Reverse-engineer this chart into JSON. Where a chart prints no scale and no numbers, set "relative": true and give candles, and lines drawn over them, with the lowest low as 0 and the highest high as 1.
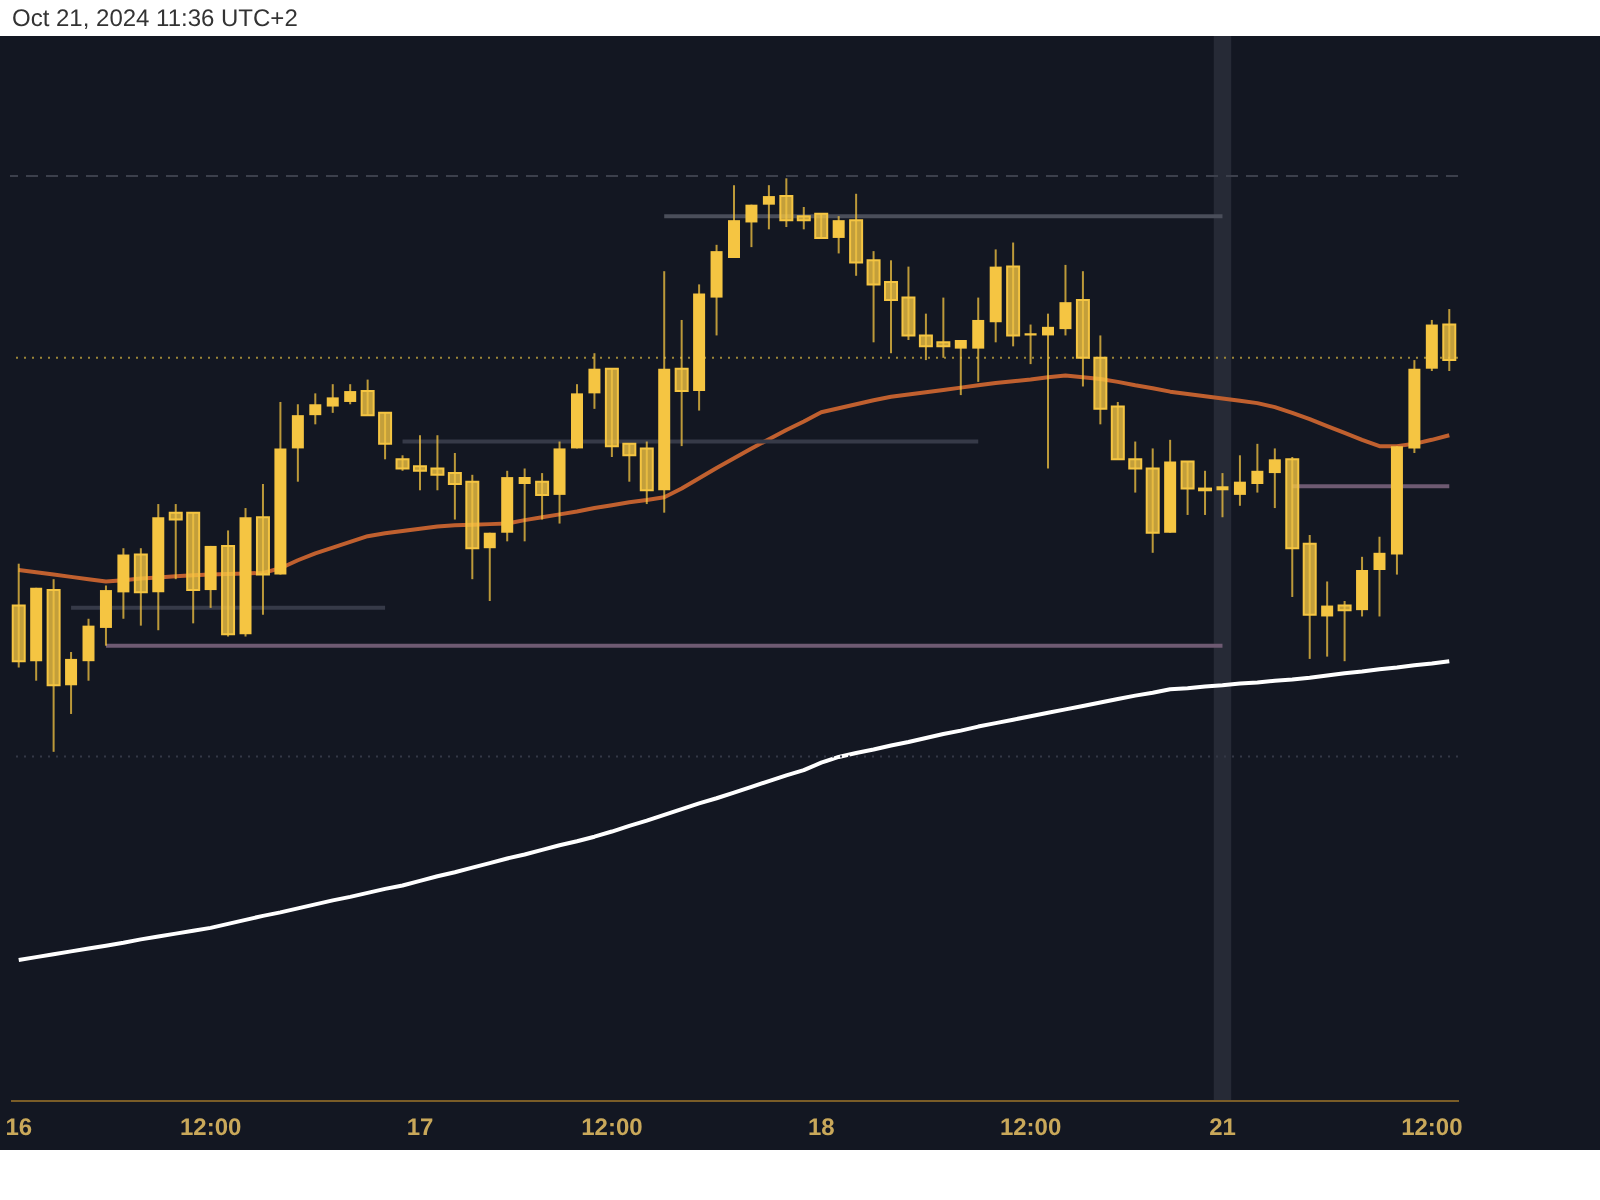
{
  "chart_data": {
    "type": "candlestick",
    "relative": true,
    "color": "#f5c542",
    "annotations": [
      "Oct 21, 2024 11:36 UTC+2"
    ],
    "categories": [
      "16",
      null,
      null,
      null,
      null,
      null,
      null,
      null,
      null,
      null,
      null,
      "12:00",
      null,
      null,
      null,
      null,
      null,
      null,
      null,
      null,
      null,
      null,
      null,
      "17",
      null,
      null,
      null,
      null,
      null,
      null,
      null,
      null,
      null,
      null,
      "12:00",
      null,
      null,
      null,
      null,
      null,
      null,
      null,
      null,
      null,
      null,
      null,
      "18",
      null,
      null,
      null,
      null,
      null,
      null,
      null,
      null,
      null,
      null,
      null,
      "12:00",
      null,
      null,
      null,
      null,
      null,
      null,
      null,
      null,
      null,
      null,
      "21",
      null,
      null,
      null,
      null,
      null,
      null,
      null,
      null,
      null,
      null,
      null,
      "12:00",
      null
    ],
    "ohlc": [
      [
        0.255,
        0.328,
        0.147,
        0.158
      ],
      [
        0.158,
        0.286,
        0.124,
        0.286
      ],
      [
        0.282,
        0.301,
        0,
        0.116
      ],
      [
        0.116,
        0.174,
        0.066,
        0.162
      ],
      [
        0.158,
        0.232,
        0.124,
        0.22
      ],
      [
        0.216,
        0.29,
        0.185,
        0.282
      ],
      [
        0.278,
        0.355,
        0.232,
        0.344
      ],
      [
        0.344,
        0.355,
        0.22,
        0.278
      ],
      [
        0.278,
        0.432,
        0.212,
        0.409
      ],
      [
        0.417,
        0.432,
        0.301,
        0.405
      ],
      [
        0.417,
        0.417,
        0.224,
        0.282
      ],
      [
        0.282,
        0.359,
        0.251,
        0.359
      ],
      [
        0.359,
        0.386,
        0.201,
        0.205
      ],
      [
        0.205,
        0.425,
        0.201,
        0.409
      ],
      [
        0.409,
        0.467,
        0.239,
        0.309
      ],
      [
        0.309,
        0.61,
        0.309,
        0.529
      ],
      [
        0.529,
        0.606,
        0.471,
        0.587
      ],
      [
        0.587,
        0.625,
        0.571,
        0.606
      ],
      [
        0.602,
        0.641,
        0.591,
        0.618
      ],
      [
        0.61,
        0.641,
        0.606,
        0.629
      ],
      [
        0.629,
        0.649,
        0.587,
        0.587
      ],
      [
        0.591,
        0.591,
        0.51,
        0.537
      ],
      [
        0.51,
        0.517,
        0.49,
        0.494
      ],
      [
        0.498,
        0.552,
        0.456,
        0.49
      ],
      [
        0.494,
        0.552,
        0.456,
        0.483
      ],
      [
        0.486,
        0.521,
        0.405,
        0.467
      ],
      [
        0.471,
        0.483,
        0.301,
        0.355
      ],
      [
        0.355,
        0.382,
        0.263,
        0.382
      ],
      [
        0.382,
        0.49,
        0.367,
        0.479
      ],
      [
        0.467,
        0.494,
        0.367,
        0.479
      ],
      [
        0.471,
        0.486,
        0.405,
        0.448
      ],
      [
        0.448,
        0.541,
        0.398,
        0.529
      ],
      [
        0.529,
        0.641,
        0.529,
        0.625
      ],
      [
        0.625,
        0.695,
        0.598,
        0.668
      ],
      [
        0.668,
        0.668,
        0.514,
        0.533
      ],
      [
        0.537,
        0.537,
        0.471,
        0.517
      ],
      [
        0.529,
        0.541,
        0.432,
        0.456
      ],
      [
        0.456,
        0.838,
        0.417,
        0.668
      ],
      [
        0.668,
        0.753,
        0.533,
        0.629
      ],
      [
        0.629,
        0.815,
        0.595,
        0.799
      ],
      [
        0.792,
        0.884,
        0.726,
        0.873
      ],
      [
        0.861,
        0.988,
        0.861,
        0.927
      ],
      [
        0.923,
        0.954,
        0.88,
        0.954
      ],
      [
        0.954,
        0.988,
        0.911,
        0.969
      ],
      [
        0.969,
        1,
        0.915,
        0.927
      ],
      [
        0.934,
        0.95,
        0.911,
        0.927
      ],
      [
        0.938,
        0.938,
        0.896,
        0.896
      ],
      [
        0.896,
        0.934,
        0.869,
        0.927
      ],
      [
        0.927,
        0.973,
        0.83,
        0.853
      ],
      [
        0.857,
        0.873,
        0.714,
        0.815
      ],
      [
        0.819,
        0.857,
        0.695,
        0.788
      ],
      [
        0.792,
        0.846,
        0.718,
        0.726
      ],
      [
        0.726,
        0.764,
        0.683,
        0.707
      ],
      [
        0.714,
        0.792,
        0.687,
        0.707
      ],
      [
        0.703,
        0.718,
        0.622,
        0.718
      ],
      [
        0.703,
        0.792,
        0.645,
        0.753
      ],
      [
        0.749,
        0.876,
        0.714,
        0.846
      ],
      [
        0.846,
        0.888,
        0.707,
        0.726
      ],
      [
        0.726,
        0.745,
        0.676,
        0.73
      ],
      [
        0.726,
        0.764,
        0.494,
        0.741
      ],
      [
        0.737,
        0.849,
        0.726,
        0.784
      ],
      [
        0.788,
        0.838,
        0.637,
        0.687
      ],
      [
        0.687,
        0.726,
        0.571,
        0.598
      ],
      [
        0.602,
        0.61,
        0.51,
        0.51
      ],
      [
        0.51,
        0.541,
        0.452,
        0.494
      ],
      [
        0.494,
        0.529,
        0.347,
        0.382
      ],
      [
        0.382,
        0.544,
        0.382,
        0.506
      ],
      [
        0.506,
        0.506,
        0.413,
        0.459
      ],
      [
        0.459,
        0.49,
        0.413,
        0.456
      ],
      [
        0.456,
        0.486,
        0.409,
        0.463
      ],
      [
        0.448,
        0.517,
        0.429,
        0.471
      ],
      [
        0.467,
        0.537,
        0.452,
        0.49
      ],
      [
        0.486,
        0.529,
        0.425,
        0.51
      ],
      [
        0.51,
        0.514,
        0.27,
        0.355
      ],
      [
        0.363,
        0.378,
        0.162,
        0.239
      ],
      [
        0.236,
        0.297,
        0.166,
        0.255
      ],
      [
        0.255,
        0.263,
        0.158,
        0.247
      ],
      [
        0.247,
        0.34,
        0.236,
        0.317
      ],
      [
        0.317,
        0.375,
        0.236,
        0.347
      ],
      [
        0.344,
        0.533,
        0.309,
        0.533
      ],
      [
        0.529,
        0.683,
        0.521,
        0.668
      ],
      [
        0.668,
        0.753,
        0.664,
        0.745
      ],
      [
        0.745,
        0.772,
        0.664,
        0.683
      ]
    ],
    "series": [
      {
        "type": "line",
        "color": "#c0602f",
        "values": [
          0.317,
          0.313,
          0.309,
          0.305,
          0.301,
          0.297,
          0.299,
          0.302,
          0.304,
          0.306,
          0.308,
          0.309,
          0.31,
          0.311,
          0.312,
          0.32,
          0.334,
          0.346,
          0.356,
          0.366,
          0.376,
          0.381,
          0.385,
          0.389,
          0.393,
          0.395,
          0.396,
          0.397,
          0.398,
          0.404,
          0.409,
          0.414,
          0.419,
          0.425,
          0.43,
          0.435,
          0.439,
          0.444,
          0.459,
          0.477,
          0.495,
          0.512,
          0.529,
          0.545,
          0.561,
          0.576,
          0.592,
          0.599,
          0.606,
          0.613,
          0.619,
          0.623,
          0.627,
          0.631,
          0.635,
          0.639,
          0.643,
          0.646,
          0.649,
          0.653,
          0.656,
          0.653,
          0.65,
          0.645,
          0.639,
          0.634,
          0.628,
          0.624,
          0.62,
          0.616,
          0.612,
          0.608,
          0.601,
          0.591,
          0.58,
          0.568,
          0.556,
          0.544,
          0.533,
          0.533,
          0.537,
          0.544,
          0.552
        ]
      },
      {
        "type": "line",
        "color": "#ffffff",
        "values": [
          -0.363,
          -0.358,
          -0.353,
          -0.348,
          -0.343,
          -0.338,
          -0.333,
          -0.327,
          -0.322,
          -0.317,
          -0.312,
          -0.307,
          -0.3,
          -0.293,
          -0.286,
          -0.28,
          -0.273,
          -0.266,
          -0.259,
          -0.253,
          -0.246,
          -0.239,
          -0.233,
          -0.225,
          -0.217,
          -0.21,
          -0.202,
          -0.194,
          -0.186,
          -0.179,
          -0.171,
          -0.163,
          -0.156,
          -0.148,
          -0.139,
          -0.129,
          -0.12,
          -0.11,
          -0.1,
          -0.09,
          -0.081,
          -0.071,
          -0.061,
          -0.051,
          -0.041,
          -0.032,
          -0.019,
          -0.009,
          -0.002,
          0.004,
          0.011,
          0.017,
          0.024,
          0.031,
          0.037,
          0.044,
          0.05,
          0.056,
          0.062,
          0.068,
          0.074,
          0.08,
          0.086,
          0.092,
          0.098,
          0.103,
          0.109,
          0.111,
          0.114,
          0.116,
          0.119,
          0.121,
          0.124,
          0.126,
          0.129,
          0.133,
          0.137,
          0.14,
          0.144,
          0.147,
          0.151,
          0.154,
          0.158
        ]
      },
      {
        "type": "line",
        "color": "#4a4e5a",
        "values": [
          null,
          null,
          null,
          null,
          null,
          null,
          null,
          null,
          null,
          null,
          null,
          null,
          null,
          null,
          null,
          null,
          null,
          null,
          null,
          null,
          null,
          null,
          null,
          null,
          null,
          null,
          null,
          null,
          null,
          null,
          null,
          null,
          null,
          null,
          null,
          null,
          null,
          0.934,
          0.934,
          0.934,
          0.934,
          0.934,
          0.934,
          0.934,
          0.934,
          0.934,
          0.934,
          0.934,
          0.934,
          0.934,
          0.934,
          0.934,
          0.934,
          0.934,
          0.934,
          0.934,
          0.934,
          0.934,
          0.934,
          0.934,
          0.934,
          0.934,
          0.934,
          0.934,
          0.934,
          0.934,
          0.934,
          0.934,
          0.934,
          0.934,
          null,
          null,
          null,
          null,
          null,
          null,
          null,
          null,
          null,
          null,
          null,
          null,
          null
        ]
      },
      {
        "type": "line",
        "color": "#6e5a72",
        "values": [
          null,
          null,
          null,
          null,
          null,
          0.185,
          0.185,
          0.185,
          0.185,
          0.185,
          0.185,
          0.185,
          0.185,
          0.185,
          0.185,
          0.185,
          0.185,
          0.185,
          0.185,
          0.185,
          0.185,
          0.185,
          0.185,
          0.185,
          0.185,
          0.185,
          0.185,
          0.185,
          0.185,
          0.185,
          0.185,
          0.185,
          0.185,
          0.185,
          0.185,
          0.185,
          0.185,
          0.185,
          0.185,
          0.185,
          0.185,
          0.185,
          0.185,
          0.185,
          0.185,
          0.185,
          0.185,
          0.185,
          0.185,
          0.185,
          0.185,
          0.185,
          0.185,
          0.185,
          0.185,
          0.185,
          0.185,
          0.185,
          0.185,
          0.185,
          0.185,
          0.185,
          0.185,
          0.185,
          0.185,
          0.185,
          0.185,
          0.185,
          0.185,
          0.185,
          null,
          null,
          null,
          null,
          null,
          null,
          null,
          null,
          null,
          null,
          null,
          null,
          null
        ]
      },
      {
        "type": "line",
        "color": "#6e5a72",
        "values": [
          null,
          null,
          null,
          null,
          null,
          null,
          null,
          null,
          null,
          null,
          null,
          null,
          null,
          null,
          null,
          null,
          null,
          null,
          null,
          null,
          null,
          null,
          null,
          null,
          null,
          null,
          null,
          null,
          null,
          null,
          null,
          null,
          null,
          null,
          null,
          null,
          null,
          null,
          null,
          null,
          null,
          null,
          null,
          null,
          null,
          null,
          null,
          null,
          null,
          null,
          null,
          null,
          null,
          null,
          null,
          null,
          null,
          null,
          null,
          null,
          null,
          null,
          null,
          null,
          null,
          null,
          null,
          null,
          null,
          null,
          null,
          null,
          null,
          0.463,
          0.463,
          0.463,
          0.463,
          0.463,
          0.463,
          0.463,
          0.463,
          0.463,
          0.463
        ]
      },
      {
        "type": "line",
        "color": "#363a48",
        "values": [
          null,
          null,
          null,
          0.251,
          0.251,
          0.251,
          0.251,
          0.251,
          0.251,
          0.251,
          0.251,
          0.251,
          0.251,
          0.251,
          0.251,
          0.251,
          0.251,
          0.251,
          0.251,
          0.251,
          0.251,
          0.251,
          null,
          null,
          null,
          null,
          null,
          null,
          null,
          null,
          null,
          null,
          null,
          null,
          null,
          null,
          null,
          null,
          null,
          null,
          null,
          null,
          null,
          null,
          null,
          null,
          null,
          null,
          null,
          null,
          null,
          null,
          null,
          null,
          null,
          null,
          null,
          null,
          null,
          null,
          null,
          null,
          null,
          null,
          null,
          null,
          null,
          null,
          null,
          null,
          null,
          null,
          null,
          null,
          null,
          null,
          null,
          null,
          null,
          null,
          null,
          null,
          null
        ]
      },
      {
        "type": "line",
        "color": "#363a48",
        "values": [
          null,
          null,
          null,
          null,
          null,
          null,
          null,
          null,
          null,
          null,
          null,
          null,
          null,
          null,
          null,
          null,
          null,
          null,
          null,
          null,
          null,
          null,
          0.541,
          0.541,
          0.541,
          0.541,
          0.541,
          0.541,
          0.541,
          0.541,
          0.541,
          0.541,
          0.541,
          0.541,
          0.541,
          0.541,
          0.541,
          0.541,
          0.541,
          0.541,
          0.541,
          0.541,
          0.541,
          0.541,
          0.541,
          0.541,
          0.541,
          0.541,
          0.541,
          0.541,
          0.541,
          0.541,
          0.541,
          0.541,
          0.541,
          0.541,
          null,
          null,
          null,
          null,
          null,
          null,
          null,
          null,
          null,
          null,
          null,
          null,
          null,
          null,
          null,
          null,
          null,
          null,
          null,
          null,
          null,
          null,
          null,
          null,
          null,
          null,
          null
        ]
      }
    ],
    "ref_lines": [
      {
        "axis": "y",
        "value": 1.004,
        "color": "#3c404c",
        "line_style": "dashed"
      },
      {
        "axis": "y",
        "value": 0.687,
        "color": "#9c8638",
        "line_style": "dotted"
      },
      {
        "axis": "y",
        "value": -0.008,
        "color": "#343846",
        "line_style": "dotted"
      }
    ],
    "bands": [
      {
        "axis": "x",
        "from": "21",
        "to": "21",
        "color": "#262a36"
      }
    ]
  }
}
